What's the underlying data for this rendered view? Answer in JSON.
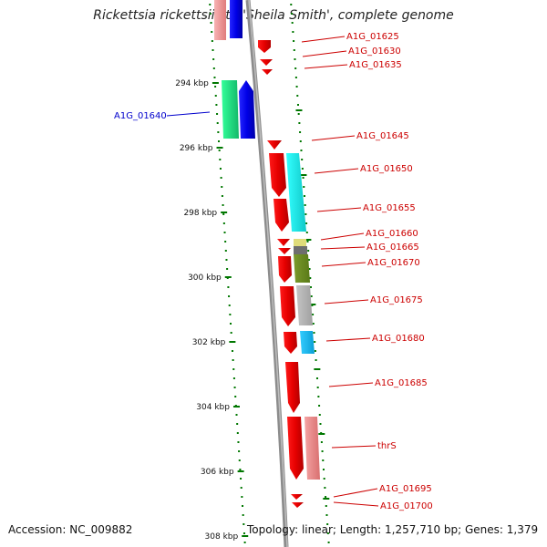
{
  "title": "Rickettsia rickettsii str. 'Sheila Smith', complete genome",
  "footer": {
    "accession": "Accession: NC_009882",
    "topology": "Topology: linear; Length: 1,257,710 bp; Genes: 1,379"
  },
  "scale": {
    "unit": "kbp",
    "ticks": [
      "294 kbp",
      "296 kbp",
      "298 kbp",
      "300 kbp",
      "302 kbp",
      "304 kbp",
      "306 kbp",
      "308 kbp"
    ]
  },
  "genes": [
    {
      "id": "A1G_01625",
      "color": "#ff0000"
    },
    {
      "id": "A1G_01630",
      "color": "#ff0000"
    },
    {
      "id": "A1G_01635",
      "color": "#ff0000"
    },
    {
      "id": "A1G_01640",
      "color": "#0000cc"
    },
    {
      "id": "A1G_01645",
      "color": "#ff0000"
    },
    {
      "id": "A1G_01650",
      "color": "#ff0000"
    },
    {
      "id": "A1G_01655",
      "color": "#ff0000"
    },
    {
      "id": "A1G_01660",
      "color": "#ff0000"
    },
    {
      "id": "A1G_01665",
      "color": "#ff0000"
    },
    {
      "id": "A1G_01670",
      "color": "#ff0000"
    },
    {
      "id": "A1G_01675",
      "color": "#ff0000"
    },
    {
      "id": "A1G_01680",
      "color": "#ff0000"
    },
    {
      "id": "A1G_01685",
      "color": "#ff0000"
    },
    {
      "id": "thrS",
      "color": "#ff0000"
    },
    {
      "id": "A1G_01695",
      "color": "#ff0000"
    },
    {
      "id": "A1G_01700",
      "color": "#ff0000"
    }
  ],
  "colors": {
    "backbone": "#8c8c8c",
    "forward_gene": "#ff0000",
    "reverse_gene": "#0000ff",
    "tick": "#007700",
    "label": "#cc0000",
    "reverse_label": "#0000cc"
  }
}
